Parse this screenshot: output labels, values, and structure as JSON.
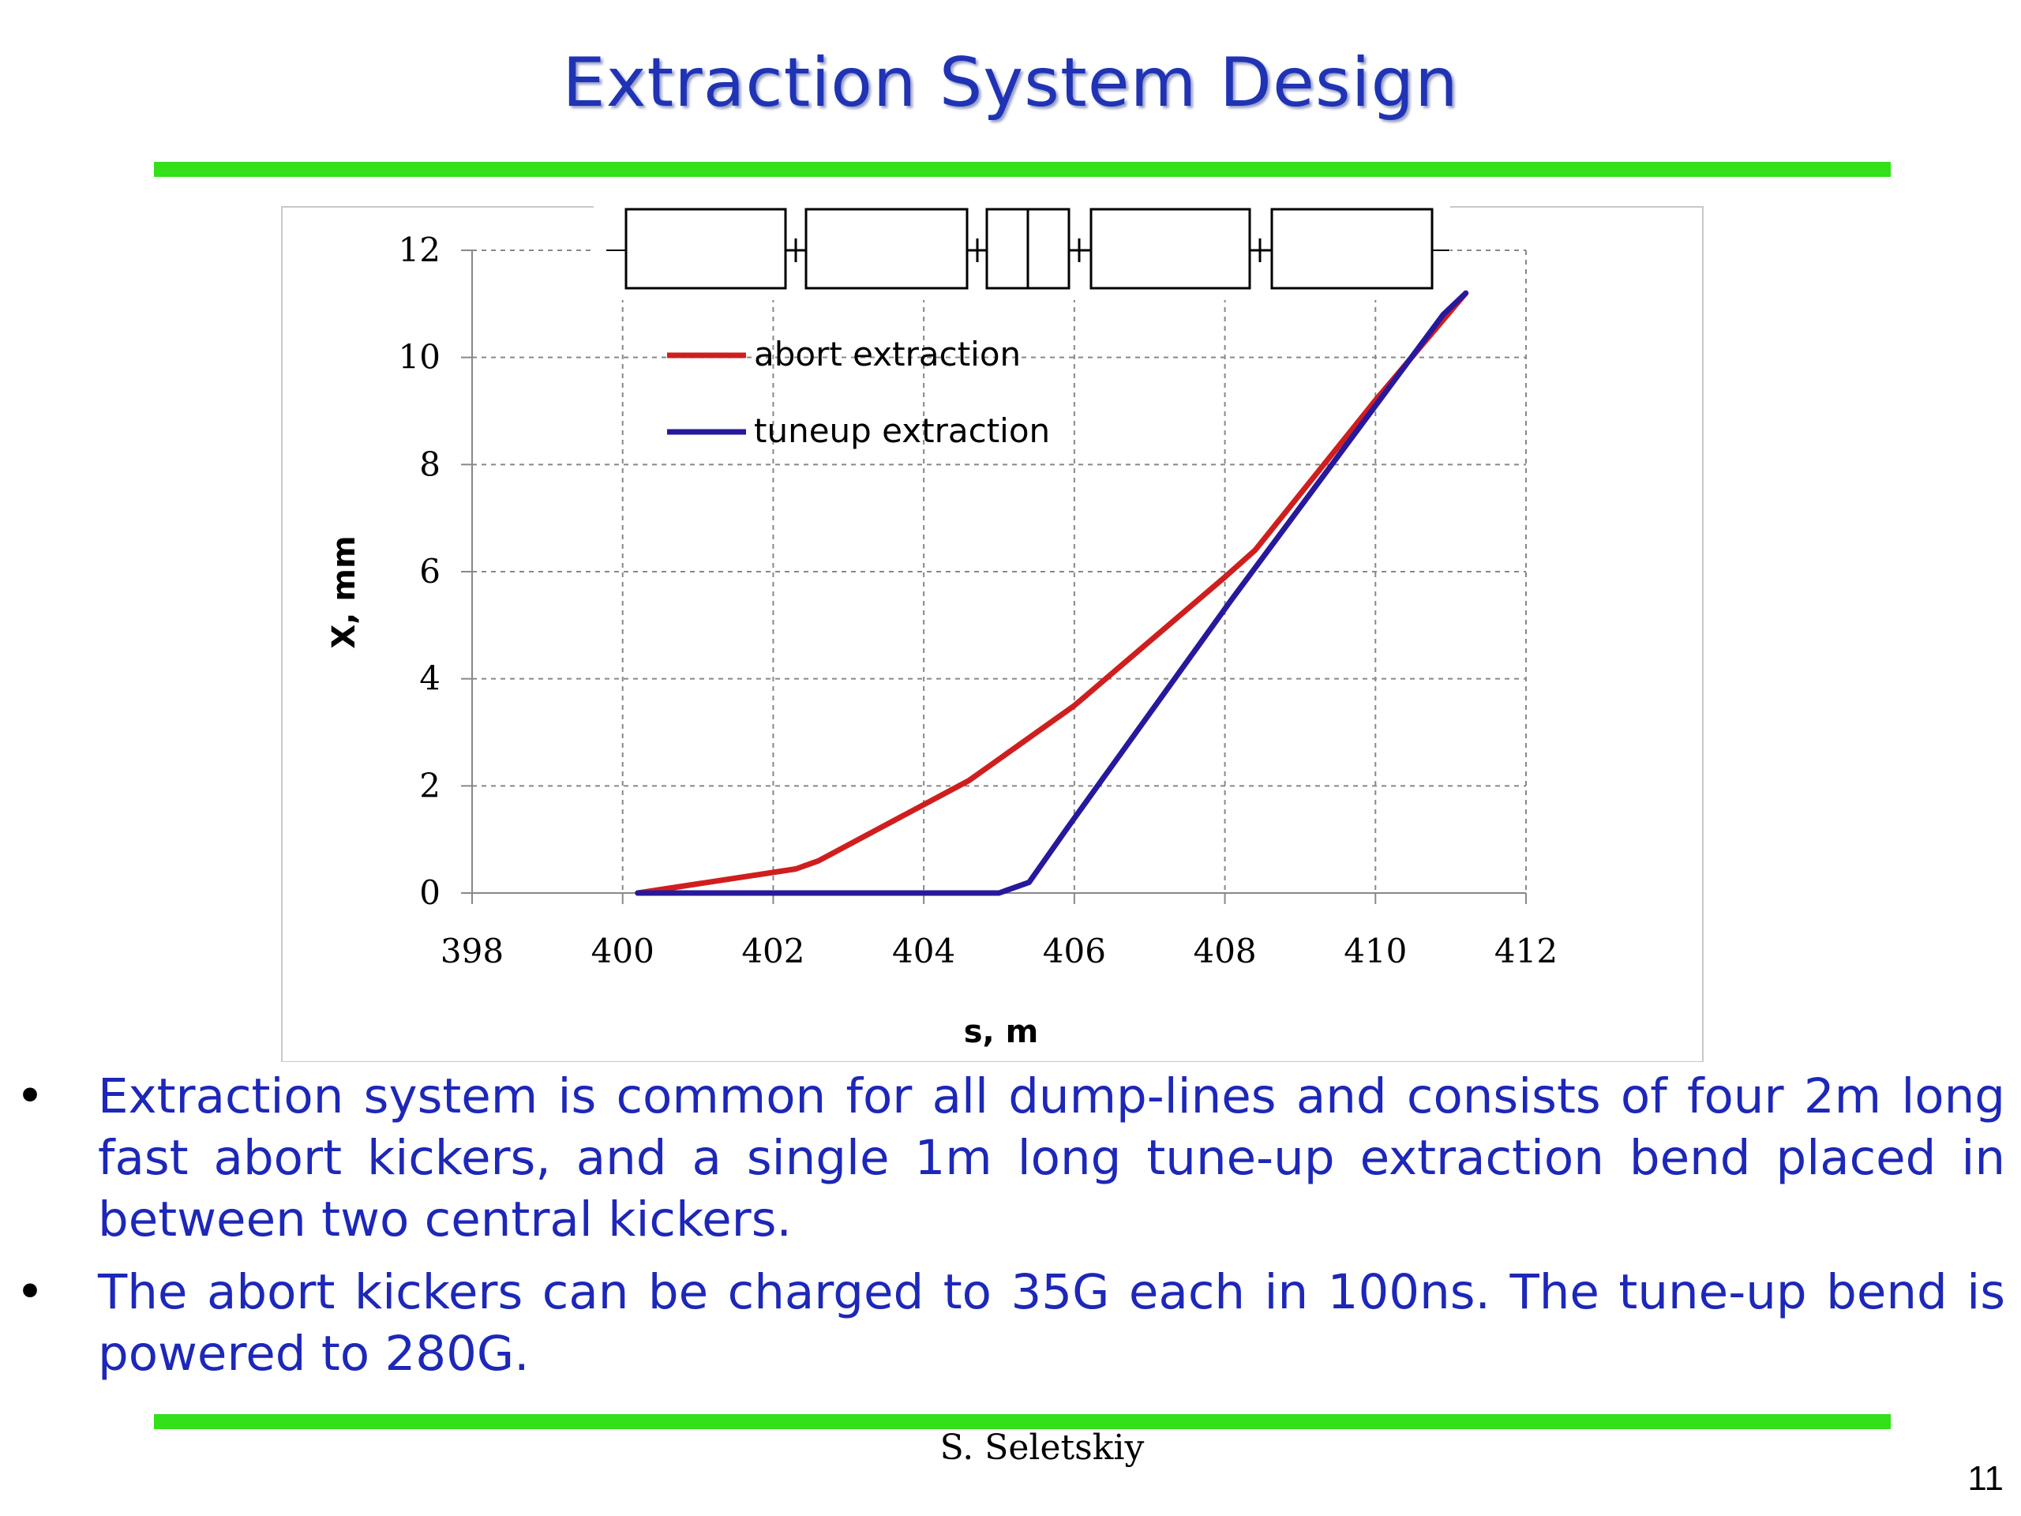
{
  "slide": {
    "title": "Extraction System Design",
    "author": "S. Seletskiy",
    "page_number": "11",
    "accent_color": "#1f33b4",
    "rule_color": "#33e01a",
    "bullets": [
      "Extraction system is common for all dump-lines and consists of four 2m long fast abort kickers, and a single 1m long tune-up extraction bend placed in between two central kickers.",
      "The abort kickers can be charged to 35G each in 100ns. The tune-up bend is powered to 280G."
    ]
  },
  "chart_data": {
    "type": "line",
    "title": "",
    "xlabel": "s, m",
    "ylabel": "X, mm",
    "xlim": [
      398,
      412
    ],
    "ylim": [
      0,
      12
    ],
    "xticks": [
      "398",
      "400",
      "402",
      "404",
      "406",
      "408",
      "410",
      "412"
    ],
    "yticks": [
      "0",
      "2",
      "4",
      "6",
      "8",
      "10",
      "12"
    ],
    "grid": "dashed",
    "legend_position": "top-left",
    "series": [
      {
        "name": "abort extraction",
        "color": "#d01e1e",
        "x": [
          400.2,
          402.3,
          402.6,
          404.6,
          406.0,
          408.0,
          408.4,
          410.0,
          411.2
        ],
        "y": [
          0.0,
          0.45,
          0.6,
          2.1,
          3.5,
          5.9,
          6.4,
          9.2,
          11.2
        ]
      },
      {
        "name": "tuneup extraction",
        "color": "#27199c",
        "x": [
          400.2,
          405.0,
          405.4,
          405.9,
          408.1,
          410.9,
          411.2
        ],
        "y": [
          0.0,
          0.0,
          0.2,
          1.2,
          5.5,
          10.8,
          11.2
        ]
      }
    ],
    "element_boxes": [
      "kicker",
      "kicker",
      "bend",
      "kicker",
      "kicker"
    ]
  }
}
